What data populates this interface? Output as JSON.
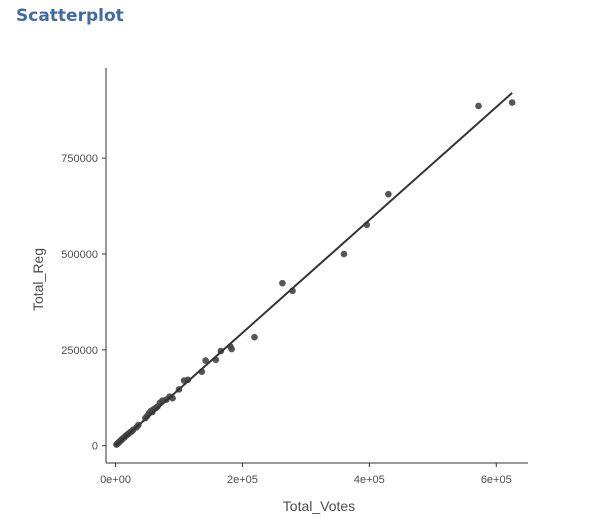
{
  "heading": "Scatterplot",
  "chart_data": {
    "type": "scatter",
    "title": "",
    "xlabel": "Total_Votes",
    "ylabel": "Total_Reg",
    "xlim": [
      -15000,
      650000
    ],
    "ylim": [
      -45000,
      985000
    ],
    "x_ticks": [
      0,
      200000,
      400000,
      600000
    ],
    "x_tick_labels": [
      "0e+00",
      "2e+05",
      "4e+05",
      "6e+05"
    ],
    "y_ticks": [
      0,
      250000,
      500000,
      750000
    ],
    "y_tick_labels": [
      "0",
      "250000",
      "500000",
      "750000"
    ],
    "grid": false,
    "legend": "none",
    "point_color": "#444444",
    "line_color": "#333333",
    "trend_line": {
      "x": [
        0,
        625000
      ],
      "y": [
        0,
        920000
      ]
    },
    "points": [
      {
        "x": 1500,
        "y": 3000
      },
      {
        "x": 2500,
        "y": 4500
      },
      {
        "x": 3500,
        "y": 6000
      },
      {
        "x": 4500,
        "y": 7500
      },
      {
        "x": 5000,
        "y": 9000
      },
      {
        "x": 6500,
        "y": 11000
      },
      {
        "x": 8000,
        "y": 12500
      },
      {
        "x": 9000,
        "y": 15000
      },
      {
        "x": 10500,
        "y": 17000
      },
      {
        "x": 12000,
        "y": 19500
      },
      {
        "x": 14000,
        "y": 22000
      },
      {
        "x": 15500,
        "y": 24500
      },
      {
        "x": 17000,
        "y": 27000
      },
      {
        "x": 19000,
        "y": 29500
      },
      {
        "x": 21000,
        "y": 32000
      },
      {
        "x": 23000,
        "y": 35000
      },
      {
        "x": 26000,
        "y": 38000
      },
      {
        "x": 28000,
        "y": 42000
      },
      {
        "x": 33000,
        "y": 48000
      },
      {
        "x": 36000,
        "y": 54000
      },
      {
        "x": 47000,
        "y": 72000
      },
      {
        "x": 50000,
        "y": 78000
      },
      {
        "x": 53000,
        "y": 85000
      },
      {
        "x": 56000,
        "y": 91000
      },
      {
        "x": 58000,
        "y": 88000
      },
      {
        "x": 60000,
        "y": 95000
      },
      {
        "x": 63000,
        "y": 98000
      },
      {
        "x": 66000,
        "y": 102000
      },
      {
        "x": 70000,
        "y": 112000
      },
      {
        "x": 74000,
        "y": 118000
      },
      {
        "x": 80000,
        "y": 120000
      },
      {
        "x": 85000,
        "y": 128000
      },
      {
        "x": 90000,
        "y": 124000
      },
      {
        "x": 100000,
        "y": 147000
      },
      {
        "x": 108000,
        "y": 170000
      },
      {
        "x": 114000,
        "y": 172000
      },
      {
        "x": 136000,
        "y": 193000
      },
      {
        "x": 142000,
        "y": 222000
      },
      {
        "x": 158000,
        "y": 224000
      },
      {
        "x": 166000,
        "y": 247000
      },
      {
        "x": 181000,
        "y": 259000
      },
      {
        "x": 183000,
        "y": 252000
      },
      {
        "x": 219000,
        "y": 283000
      },
      {
        "x": 263000,
        "y": 424000
      },
      {
        "x": 279000,
        "y": 404000
      },
      {
        "x": 360000,
        "y": 500000
      },
      {
        "x": 396000,
        "y": 576000
      },
      {
        "x": 430000,
        "y": 656000
      },
      {
        "x": 572000,
        "y": 886000
      },
      {
        "x": 625000,
        "y": 895000
      }
    ]
  }
}
